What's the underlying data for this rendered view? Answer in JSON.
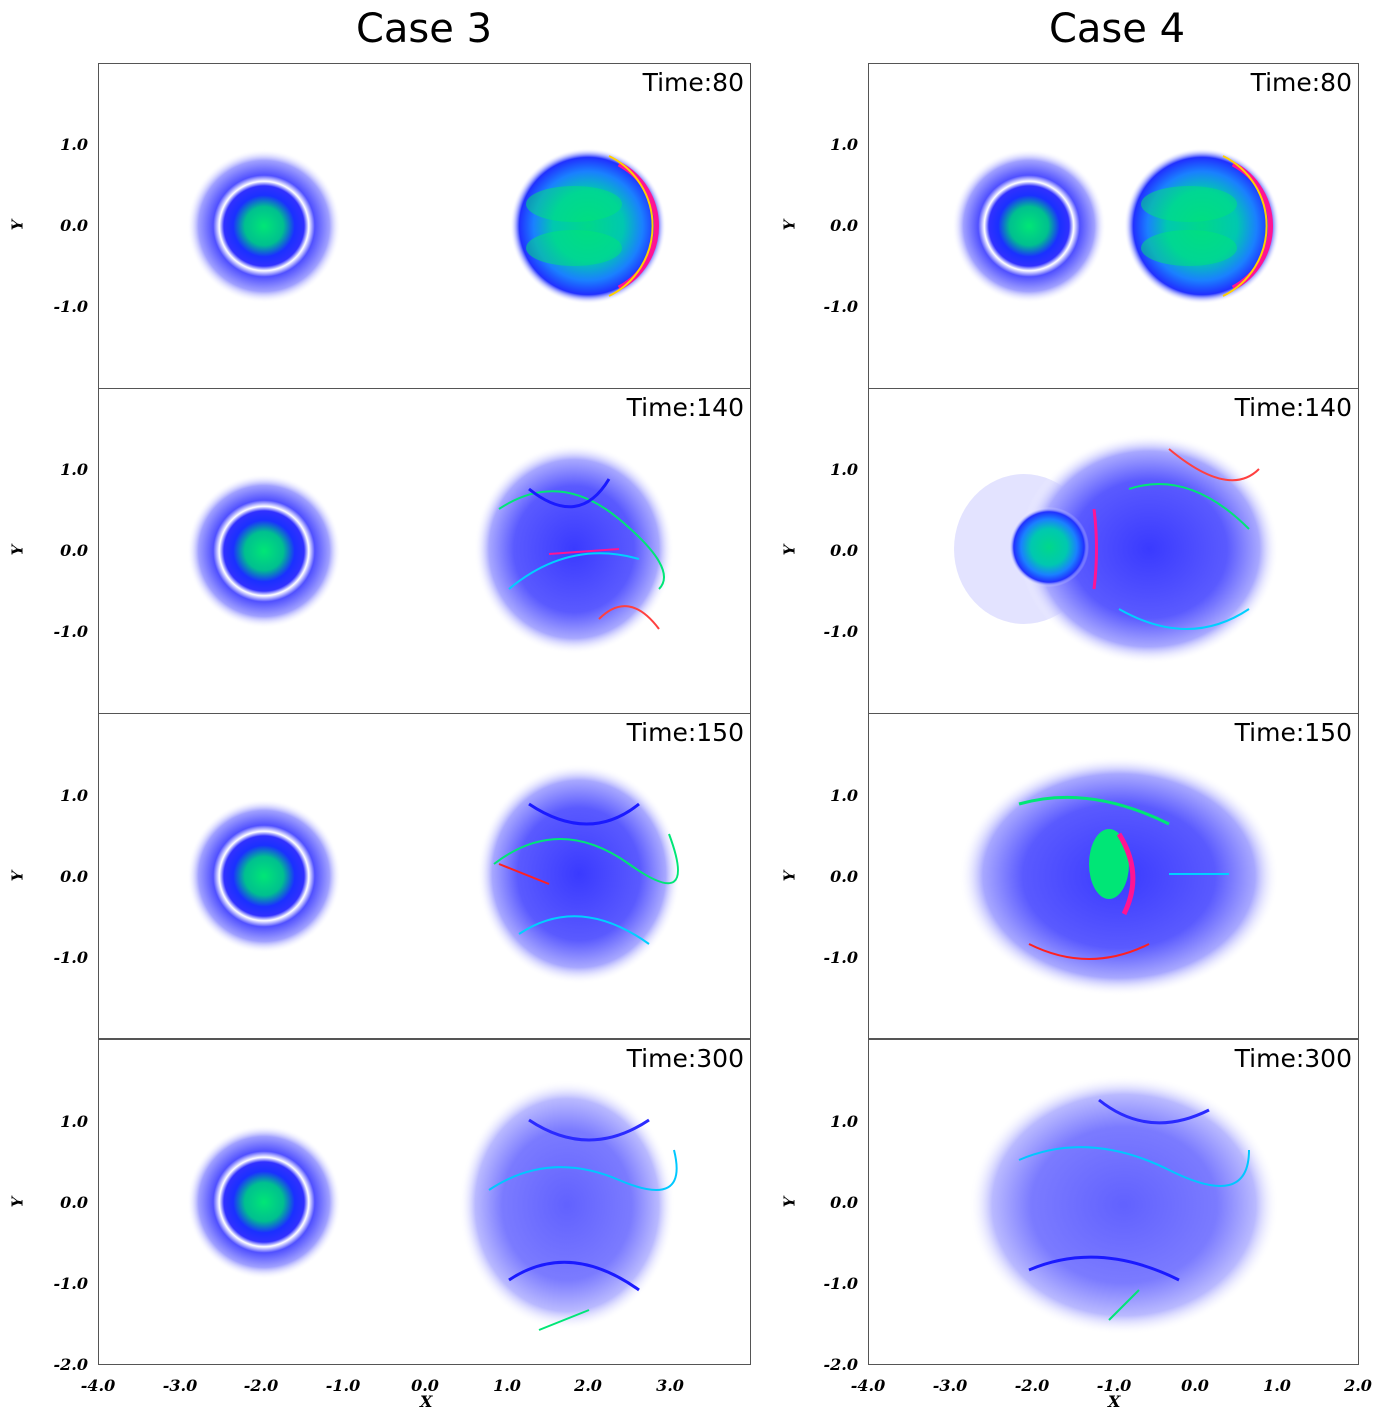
{
  "figure": {
    "columns": [
      {
        "title": "Case 3",
        "panels": [
          {
            "time_label": "Time:80",
            "state": "vortex-right-isolated"
          },
          {
            "time_label": "Time:140",
            "state": "turbulent-right"
          },
          {
            "time_label": "Time:150",
            "state": "turbulent-right"
          },
          {
            "time_label": "Time:300",
            "state": "turbulent-right-decayed"
          }
        ],
        "x_ticks": [
          "-4.0",
          "-3.0",
          "-2.0",
          "-1.0",
          "0.0",
          "1.0",
          "2.0",
          "3.0"
        ],
        "x_axis_label": "X"
      },
      {
        "title": "Case 4",
        "panels": [
          {
            "time_label": "Time:80",
            "state": "vortex-adjacent"
          },
          {
            "time_label": "Time:140",
            "state": "interacting"
          },
          {
            "time_label": "Time:150",
            "state": "merging"
          },
          {
            "time_label": "Time:300",
            "state": "merged-turbulent"
          }
        ],
        "x_ticks": [
          "-4.0",
          "-3.0",
          "-2.0",
          "-1.0",
          "0.0",
          "1.0",
          "2.0"
        ],
        "x_axis_label": "X"
      }
    ],
    "y_ticks": [
      "1.0",
      "0.0",
      "-1.0"
    ],
    "y_tick_bottom": "-2.0",
    "y_axis_label": "Y",
    "colors": {
      "low": "#ffffff",
      "mid": "#1a1aff",
      "high": "#00e676",
      "peak": "#ff1493"
    }
  }
}
